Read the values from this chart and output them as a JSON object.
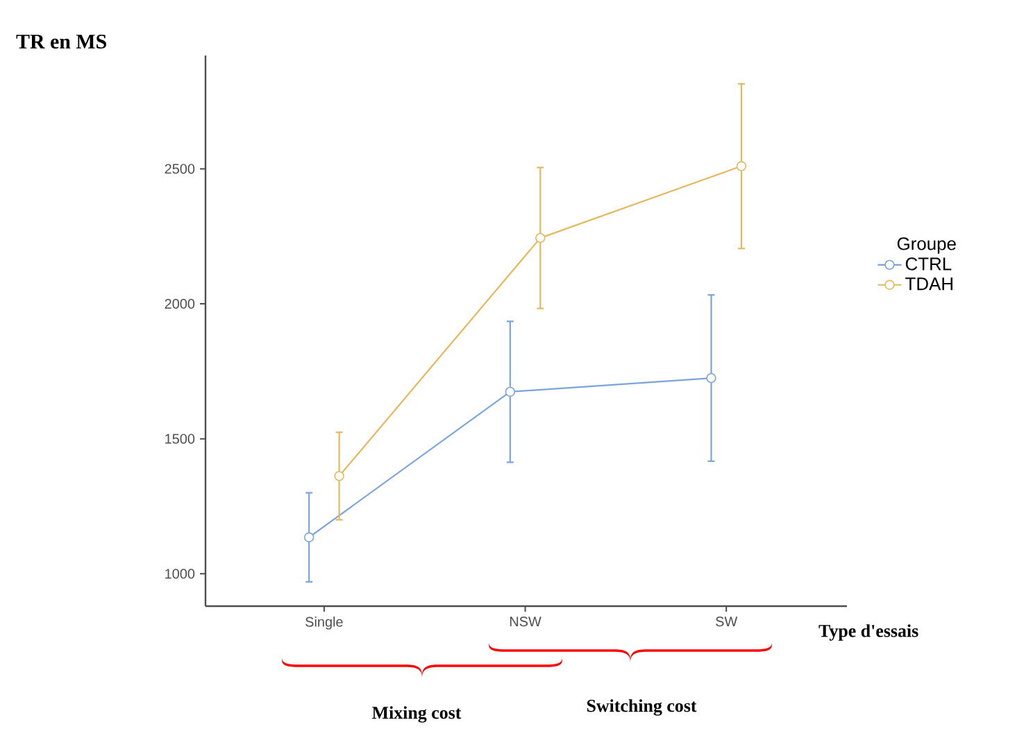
{
  "chart_data": {
    "type": "line",
    "title": "TR en MS",
    "xlabel": "Type d'essais",
    "legend_title": "Groupe",
    "categories": [
      "Single",
      "NSW",
      "SW"
    ],
    "series": [
      {
        "name": "CTRL",
        "color": "#7ba3dd",
        "values": [
          1135,
          1674,
          1725
        ],
        "errors": [
          165,
          261,
          308
        ]
      },
      {
        "name": "TDAH",
        "color": "#e5b85c",
        "values": [
          1362,
          2244,
          2510
        ],
        "errors": [
          162,
          261,
          305
        ]
      }
    ],
    "ylim": [
      880,
      2920
    ],
    "yticks": [
      1000,
      1500,
      2000,
      2500
    ],
    "marker": "circle",
    "line_style": "solid",
    "grid": false,
    "legend": "right",
    "annotations": [
      "Mixing cost",
      "Switching cost"
    ]
  }
}
